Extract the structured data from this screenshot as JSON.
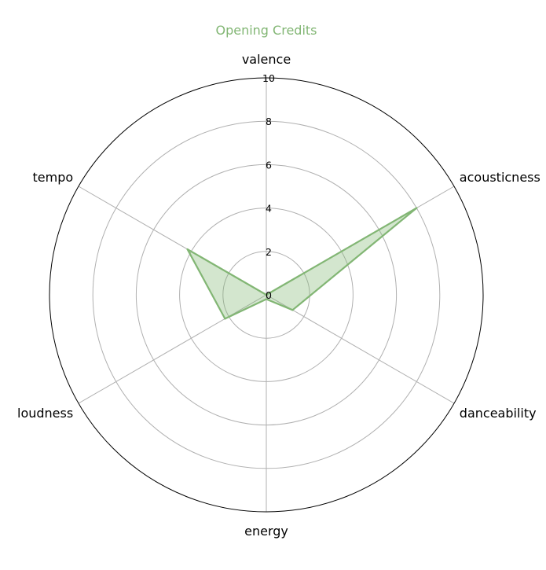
{
  "chart_data": {
    "type": "radar",
    "title": "Opening Credits",
    "axes": [
      "valence",
      "acousticness",
      "danceability",
      "energy",
      "loudness",
      "tempo"
    ],
    "rlim": [
      0,
      10
    ],
    "rticks": [
      0,
      2,
      4,
      6,
      8,
      10
    ],
    "rtick_labels": [
      "0",
      "2",
      "4",
      "6",
      "8",
      "10"
    ],
    "grid": true,
    "series": [
      {
        "values": [
          0,
          8,
          1.4,
          0.2,
          2.2,
          4.2
        ],
        "color": "#82b674",
        "fill_color": "#82b674",
        "fill_opacity": 0.35
      }
    ]
  }
}
